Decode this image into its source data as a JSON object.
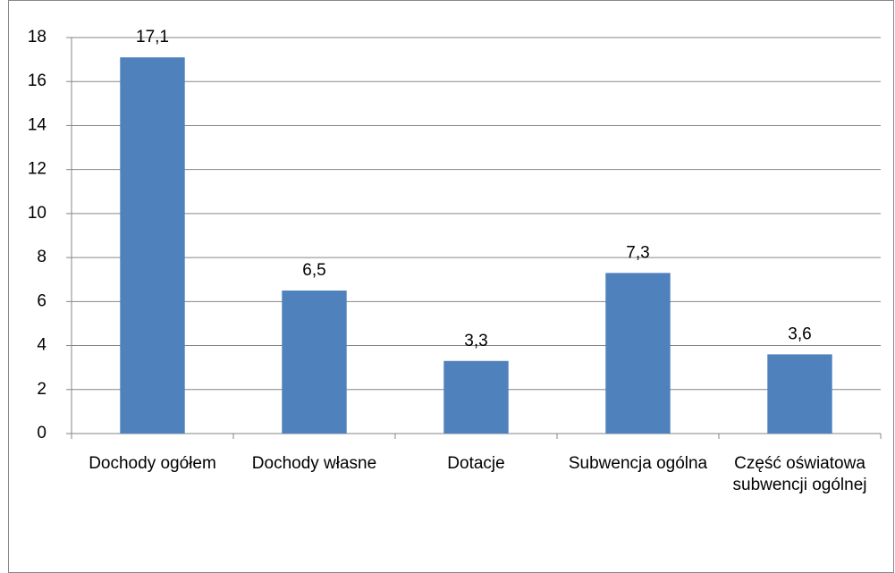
{
  "chart_data": {
    "type": "bar",
    "categories": [
      "Dochody ogółem",
      "Dochody własne",
      "Dotacje",
      "Subwencja ogólna",
      "Część oświatowa subwencji ogólnej"
    ],
    "values": [
      17.1,
      6.5,
      3.3,
      7.3,
      3.6
    ],
    "value_labels": [
      "17,1",
      "6,5",
      "3,3",
      "7,3",
      "3,6"
    ],
    "color": "#4f81bd",
    "ylim": [
      0,
      18
    ],
    "yticks": [
      0,
      2,
      4,
      6,
      8,
      10,
      12,
      14,
      16,
      18
    ],
    "grid": true
  }
}
